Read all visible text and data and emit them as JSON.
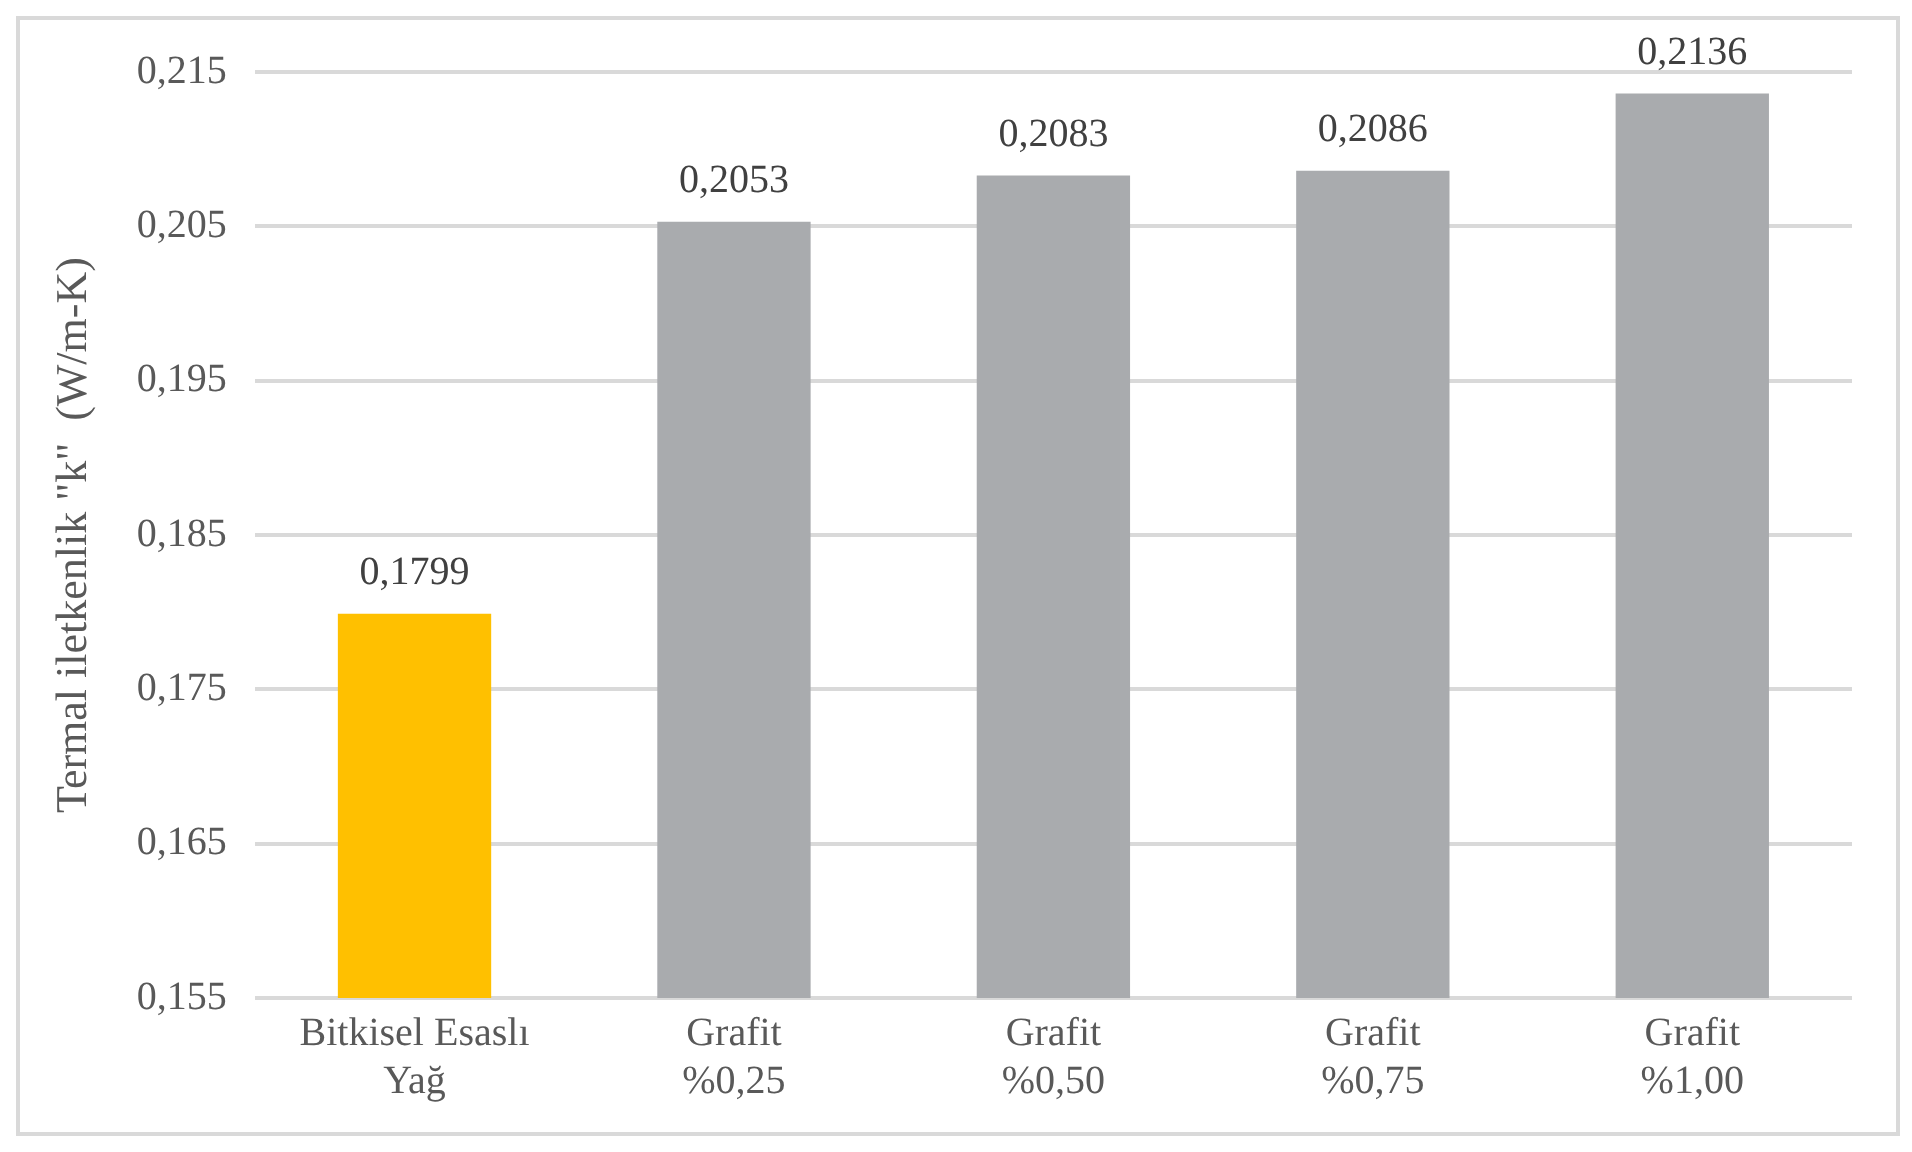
{
  "chart_data": {
    "type": "bar",
    "ylabel": "Termal iletkenlik \"k\"  (W/m-K)",
    "categories": [
      "Bitkisel Esaslı\nYağ",
      "Grafit\n%0,25",
      "Grafit\n%0,50",
      "Grafit\n%0,75",
      "Grafit\n%1,00"
    ],
    "values": [
      0.1799,
      0.2053,
      0.2083,
      0.2086,
      0.2136
    ],
    "value_labels": [
      "0,1799",
      "0,2053",
      "0,2083",
      "0,2086",
      "0,2136"
    ],
    "colors": [
      "#ffc000",
      "#a9abae",
      "#a9abae",
      "#a9abae",
      "#a9abae"
    ],
    "ylim": [
      0.155,
      0.215
    ],
    "yticks": [
      {
        "value": 0.155,
        "label": "0,155"
      },
      {
        "value": 0.165,
        "label": "0,165"
      },
      {
        "value": 0.175,
        "label": "0,175"
      },
      {
        "value": 0.185,
        "label": "0,185"
      },
      {
        "value": 0.195,
        "label": "0,195"
      },
      {
        "value": 0.205,
        "label": "0,205"
      },
      {
        "value": 0.215,
        "label": "0,215"
      }
    ],
    "grid": "y"
  }
}
